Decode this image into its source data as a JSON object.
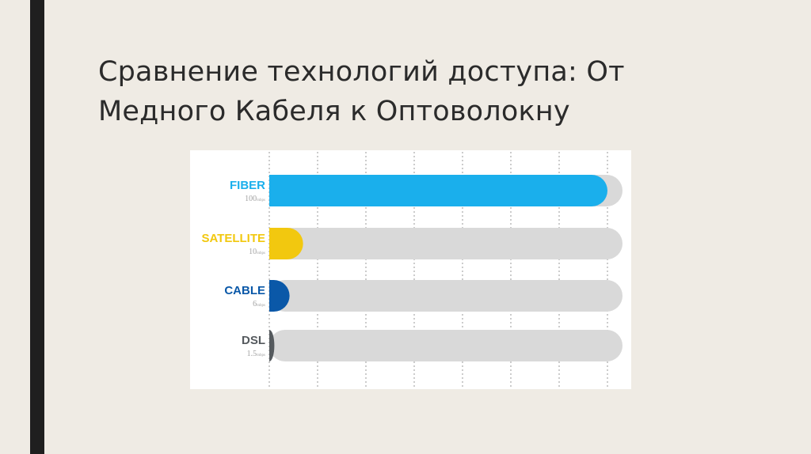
{
  "slide": {
    "title": "Сравнение технологий доступа: От\nМедного Кабеля к Оптоволокну"
  },
  "colors": {
    "background": "#efebe4",
    "accent_bar": "#1f1f1f",
    "track": "#d9d9d9",
    "gridline": "#9a9a9a"
  },
  "chart_data": {
    "type": "bar",
    "orientation": "horizontal",
    "title": "",
    "xlabel": "",
    "ylabel": "",
    "xlim": [
      0,
      100
    ],
    "grid": true,
    "categories": [
      "FIBER",
      "SATELLITE",
      "CABLE",
      "DSL"
    ],
    "values": [
      100,
      10,
      6,
      1.5
    ],
    "value_labels": [
      "100",
      "10",
      "6",
      "1.5"
    ],
    "unit": "mbps",
    "bar_colors": [
      "#1aafec",
      "#f2c80f",
      "#0a58a8",
      "#555a5e"
    ]
  }
}
